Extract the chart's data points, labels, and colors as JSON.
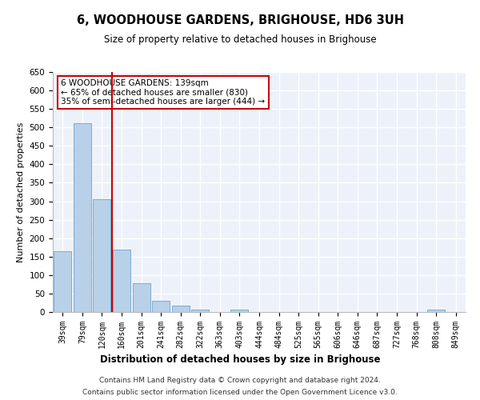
{
  "title": "6, WOODHOUSE GARDENS, BRIGHOUSE, HD6 3UH",
  "subtitle": "Size of property relative to detached houses in Brighouse",
  "xlabel_bottom": "Distribution of detached houses by size in Brighouse",
  "ylabel": "Number of detached properties",
  "bar_color": "#b8d0e8",
  "bar_edge_color": "#7aadd4",
  "categories": [
    "39sqm",
    "79sqm",
    "120sqm",
    "160sqm",
    "201sqm",
    "241sqm",
    "282sqm",
    "322sqm",
    "363sqm",
    "403sqm",
    "444sqm",
    "484sqm",
    "525sqm",
    "565sqm",
    "606sqm",
    "646sqm",
    "687sqm",
    "727sqm",
    "768sqm",
    "808sqm",
    "849sqm"
  ],
  "values": [
    165,
    511,
    305,
    170,
    78,
    30,
    18,
    7,
    0,
    7,
    0,
    0,
    0,
    0,
    0,
    0,
    0,
    0,
    0,
    7,
    0
  ],
  "ylim": [
    0,
    650
  ],
  "yticks": [
    0,
    50,
    100,
    150,
    200,
    250,
    300,
    350,
    400,
    450,
    500,
    550,
    600,
    650
  ],
  "vline_x": 2.5,
  "vline_color": "#cc0000",
  "annotation_title": "6 WOODHOUSE GARDENS: 139sqm",
  "annotation_line1": "← 65% of detached houses are smaller (830)",
  "annotation_line2": "35% of semi-detached houses are larger (444) →",
  "annotation_box_color": "#ffffff",
  "annotation_box_edge": "#cc0000",
  "background_color": "#edf2fa",
  "grid_color": "#ffffff",
  "footer1": "Contains HM Land Registry data © Crown copyright and database right 2024.",
  "footer2": "Contains public sector information licensed under the Open Government Licence v3.0."
}
